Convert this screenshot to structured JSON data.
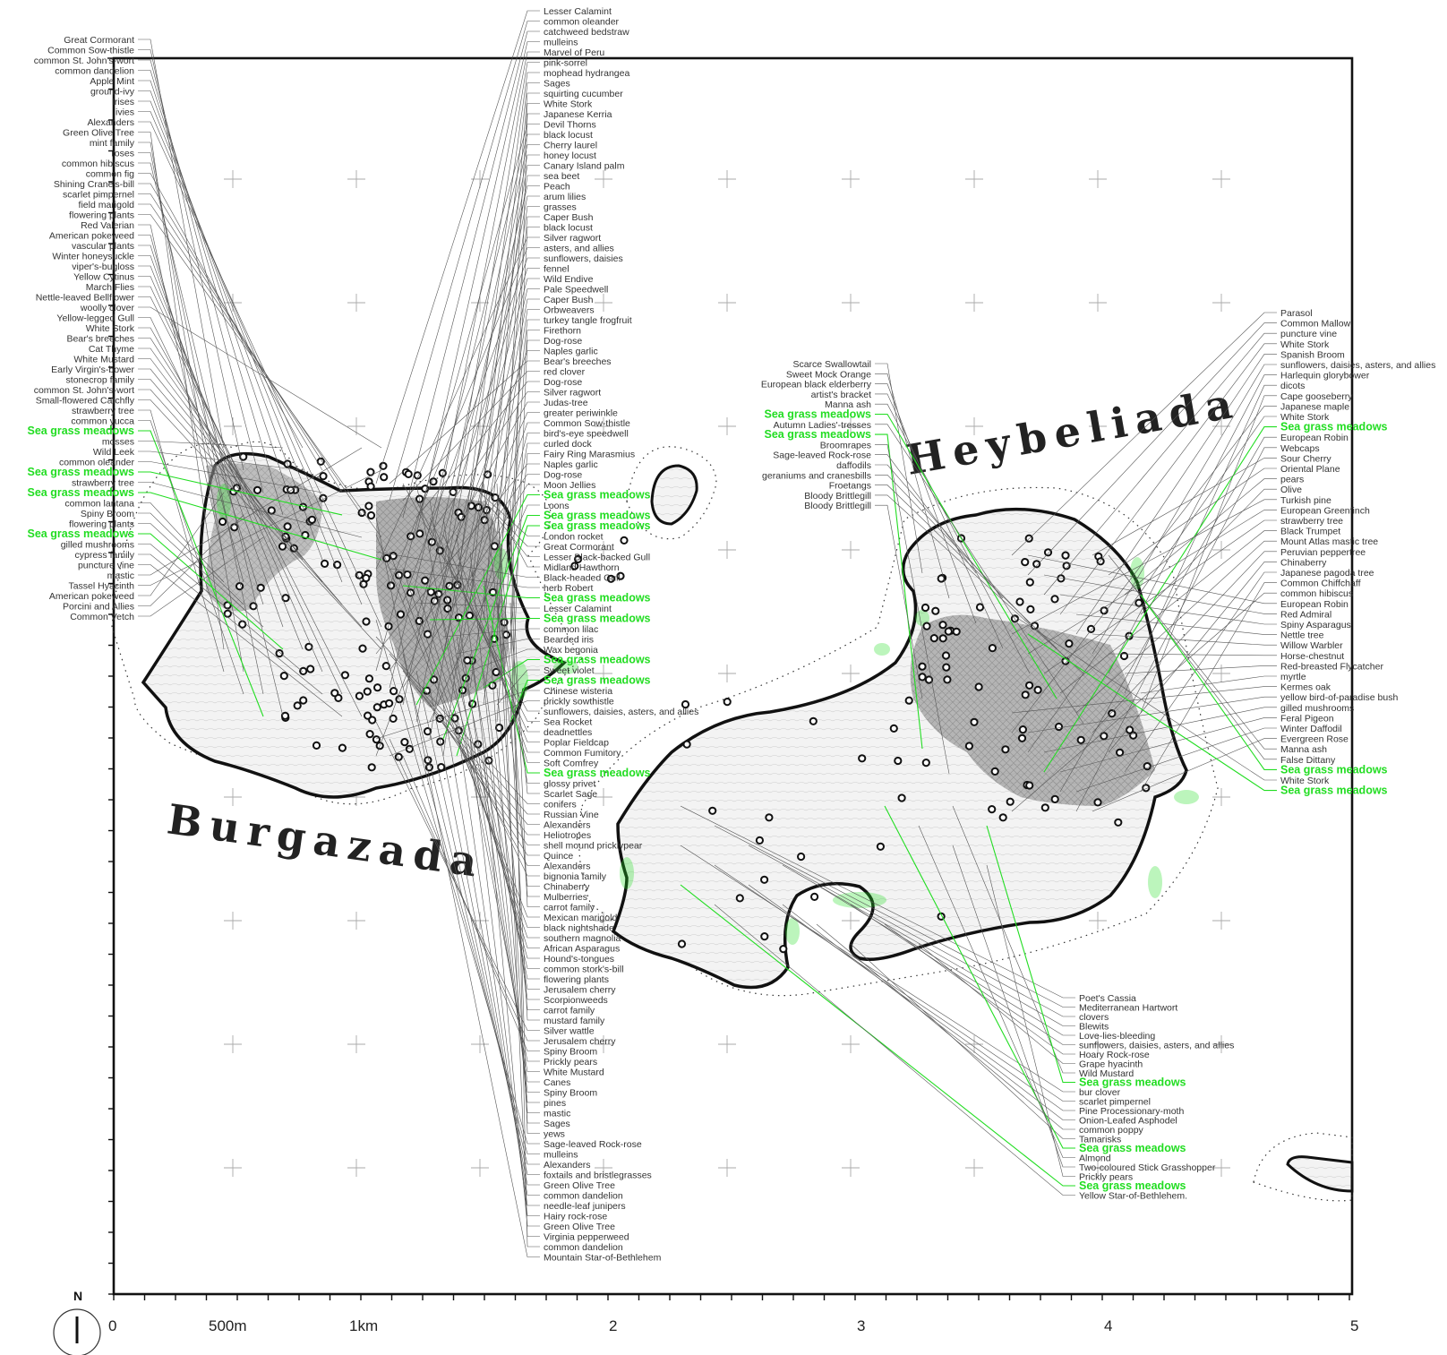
{
  "islands": {
    "burgazada": "Burgazada",
    "heybeliada": "Heybeliada"
  },
  "north": "N",
  "scale": {
    "labels": [
      "0",
      "500m",
      "1km",
      "2",
      "3",
      "4",
      "5"
    ]
  },
  "colors": {
    "sea_grass": "#22dd22",
    "land_fill": "#f1f1f1",
    "urban_fill": "#8a8a8a"
  },
  "labels": {
    "left": [
      "Great Cormorant",
      "Common Sow-thistle",
      "common St. John's-wort",
      "common dandelion",
      "Apple Mint",
      "ground-ivy",
      "Irises",
      "ivies",
      "Alexanders",
      "Green Olive Tree",
      "mint family",
      "roses",
      "common hibiscus",
      "common fig",
      "Shining Crane's-bill",
      "scarlet pimpernel",
      "field marigold",
      "flowering plants",
      "Red Valerian",
      "American pokeweed",
      "vascular plants",
      "Winter honeysuckle",
      "viper's-bugloss",
      "Yellow Cytinus",
      "March Flies",
      "Nettle-leaved Bellflower",
      "woolly clover",
      "Yellow-legged Gull",
      "White Stork",
      "Bear's breeches",
      "Cat Thyme",
      "White Mustard",
      "Early Virgin's-bower",
      "stonecrop family",
      "common St. John's-wort",
      "Small-flowered Catchfly",
      "strawberry tree",
      "common yucca",
      "Sea grass meadows",
      "mosses",
      "Wild Leek",
      "common oleander",
      "Sea grass meadows",
      "strawberry tree",
      "Sea grass meadows",
      "common lantana",
      "Spiny Broom",
      "flowering plants",
      "Sea grass meadows",
      "gilled mushrooms",
      "cypress family",
      "puncture vine",
      "mastic",
      "Tassel Hyacinth",
      "American pokeweed",
      "Porcini and Allies",
      "Common Vetch"
    ],
    "top": [
      "Lesser Calamint",
      "common oleander",
      "catchweed bedstraw",
      "mulleins",
      "Marvel of Peru",
      "pink-sorrel",
      "mophead hydrangea",
      "Sages",
      "squirting cucumber",
      "White Stork",
      "Japanese Kerria",
      "Devil Thorns",
      "black locust",
      "Cherry laurel",
      "honey locust",
      "Canary Island palm",
      "sea beet",
      "Peach",
      "arum lilies",
      "grasses",
      "Caper Bush",
      "black locust",
      "Silver ragwort",
      "asters, and allies",
      "sunflowers, daisies",
      "fennel",
      "Wild Endive",
      "Pale Speedwell",
      "Caper Bush",
      "Orbweavers",
      "turkey tangle frogfruit",
      "Firethorn",
      "Dog-rose",
      "Naples garlic",
      "Bear's breeches",
      "red clover",
      "Dog-rose",
      "Silver ragwort",
      "Judas-tree",
      "greater periwinkle",
      "Common Sow-thistle",
      "bird's-eye speedwell",
      "curled dock",
      "Fairy Ring Marasmius",
      "Naples garlic",
      "Dog-rose",
      "Moon Jellies",
      "Sea grass meadows",
      "Loons",
      "Sea grass meadows",
      "Sea grass meadows",
      "London rocket",
      "Great Cormorant",
      "Lesser Black-backed Gull",
      "Midland Hawthorn",
      "Black-headed Gull",
      "herb Robert",
      "Sea grass meadows",
      "Lesser Calamint",
      "Sea grass meadows",
      "common lilac",
      "Bearded iris",
      "Wax begonia",
      "Sea grass meadows",
      "Sweet violet",
      "Sea grass meadows",
      "Chinese wisteria",
      "prickly sowthistle",
      "sunflowers, daisies, asters, and allies",
      "Sea Rocket",
      "deadnettles",
      "Poplar Fieldcap",
      "Common Fumitory",
      "Soft Comfrey",
      "Sea grass meadows",
      "glossy privet",
      "Scarlet Sage",
      "conifers",
      "Russian Vine",
      "Alexanders",
      "Heliotropes",
      "shell mound pricklypear",
      "Quince",
      "Alexanders",
      "bignonia family",
      "Chinaberry",
      "Mulberries",
      "carrot family",
      "Mexican marigold",
      "black nightshade",
      "southern magnolia",
      "African Asparagus",
      "Hound's-tongues",
      "common stork's-bill",
      "flowering plants",
      "Jerusalem cherry",
      "Scorpionweeds",
      "carrot family",
      "mustard family",
      "Silver wattle",
      "Jerusalem cherry",
      "Spiny Broom",
      "Prickly pears",
      "White Mustard",
      "Canes",
      "Spiny Broom",
      "pines",
      "mastic",
      "Sages",
      "yews",
      "Sage-leaved Rock-rose",
      "mulleins",
      "Alexanders",
      "foxtails and bristlegrasses",
      "Green Olive Tree",
      "common dandelion",
      "needle-leaf junipers",
      "Hairy rock-rose",
      "Green Olive Tree",
      "Virginia pepperweed",
      "common dandelion",
      "Mountain Star-of-Bethlehem"
    ],
    "heybeli_top": [
      "Scarce Swallowtail",
      "Sweet Mock Orange",
      "European black elderberry",
      "artist's bracket",
      "Manna ash",
      "Sea grass meadows",
      "Autumn Ladies'-tresses",
      "Sea grass meadows",
      "Broomrapes",
      "Sage-leaved Rock-rose",
      "daffodils",
      "geraniums and cranesbills",
      "Froetangs",
      "Bloody Brittlegill",
      "Bloody Brittlegill"
    ],
    "right": [
      "Parasol",
      "Common Mallow",
      "puncture vine",
      "White Stork",
      "Spanish Broom",
      "sunflowers, daisies, asters, and allies",
      "Harlequin glorybower",
      "dicots",
      "Cape gooseberry",
      "Japanese maple",
      "White Stork",
      "Sea grass meadows",
      "European Robin",
      "Webcaps",
      "Sour Cherry",
      "Oriental Plane",
      "pears",
      "Olive",
      "Turkish pine",
      "European Greenfinch",
      "strawberry tree",
      "Black Trumpet",
      "Mount Atlas mastic tree",
      "Peruvian peppertree",
      "Chinaberry",
      "Japanese pagoda tree",
      "Common Chiffchaff",
      "common hibiscus",
      "European Robin",
      "Red Admiral",
      "Spiny Asparagus",
      "Nettle tree",
      "Willow Warbler",
      "Horse-chestnut",
      "Red-breasted Flycatcher",
      "myrtle",
      "Kermes oak",
      "yellow bird-of-paradise bush",
      "gilled mushrooms",
      "Feral Pigeon",
      "Winter Daffodil",
      "Evergreen Rose",
      "Manna ash",
      "False Dittany",
      "Sea grass meadows",
      "White Stork",
      "Sea grass meadows"
    ],
    "bottom": [
      "Poet's Cassia",
      "Mediterranean Hartwort",
      "clovers",
      "Blewits",
      "Love-lies-bleeding",
      "sunflowers, daisies, asters, and allies",
      "Hoary Rock-rose",
      "Grape hyacinth",
      "Wild Mustard",
      "Sea grass meadows",
      "bur clover",
      "scarlet pimpernel",
      "Pine Processionary-moth",
      "Onion-Leafed Asphodel",
      "common poppy",
      "Tamarisks",
      "Sea grass meadows",
      "Almond",
      "Two-coloured Stick Grasshopper",
      "Prickly pears",
      "Sea grass meadows",
      "Yellow Star-of-Bethlehem."
    ]
  }
}
